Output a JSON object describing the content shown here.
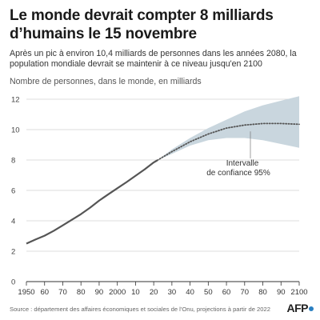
{
  "title": "Le monde devrait compter 8 milliards d’humains le 15 novembre",
  "subtitle": "Après un pic à environ 10,4 milliards de personnes dans les années 2080, la population mondiale devrait se maintenir à ce niveau jusqu'en 2100",
  "source": "Source : département des affaires économiques et sociales de l'Onu, projections à partir de 2022",
  "logo": "AFP",
  "colors": {
    "line": "#555555",
    "band": "#c9d6de",
    "grid": "#d0d0d0",
    "logo_dot": "#2a7fc1"
  },
  "chart_data": {
    "type": "line",
    "title": "Le monde devrait compter 8 milliards d’humains le 15 novembre",
    "ylabel": "Nombre de personnes, dans le monde, en milliards",
    "xlabel": "",
    "ylim": [
      0,
      12
    ],
    "xlim": [
      1950,
      2100
    ],
    "yticks": [
      0,
      2,
      4,
      6,
      8,
      10,
      12
    ],
    "xticks": [
      1950,
      1960,
      1970,
      1980,
      1990,
      2000,
      2010,
      2020,
      2030,
      2040,
      2050,
      2060,
      2070,
      2080,
      2090,
      2100
    ],
    "xtick_labels": [
      "1950",
      "60",
      "70",
      "80",
      "90",
      "2000",
      "10",
      "20",
      "30",
      "40",
      "50",
      "60",
      "70",
      "80",
      "90",
      "2100"
    ],
    "grid": "horizontal",
    "annotation": {
      "text_lines": [
        "Intervalle",
        "de confiance 95%"
      ]
    },
    "series": [
      {
        "style": "solid",
        "x": [
          1950,
          1955,
          1960,
          1965,
          1970,
          1975,
          1980,
          1985,
          1990,
          1995,
          2000,
          2005,
          2010,
          2015,
          2020,
          2022
        ],
        "values": [
          2.5,
          2.77,
          3.02,
          3.34,
          3.7,
          4.07,
          4.44,
          4.86,
          5.33,
          5.74,
          6.14,
          6.54,
          6.96,
          7.38,
          7.84,
          7.98
        ]
      },
      {
        "style": "dotted",
        "x": [
          2022,
          2030,
          2040,
          2050,
          2060,
          2070,
          2080,
          2086,
          2090,
          2100
        ],
        "values": [
          7.98,
          8.55,
          9.2,
          9.71,
          10.1,
          10.3,
          10.4,
          10.4,
          10.4,
          10.35
        ]
      }
    ],
    "confidence_interval": {
      "x": [
        2022,
        2030,
        2040,
        2050,
        2060,
        2070,
        2080,
        2090,
        2100
      ],
      "low": [
        7.98,
        8.4,
        8.95,
        9.3,
        9.45,
        9.45,
        9.3,
        9.05,
        8.8
      ],
      "high": [
        7.98,
        8.7,
        9.45,
        10.1,
        10.65,
        11.2,
        11.6,
        11.9,
        12.2
      ]
    }
  }
}
